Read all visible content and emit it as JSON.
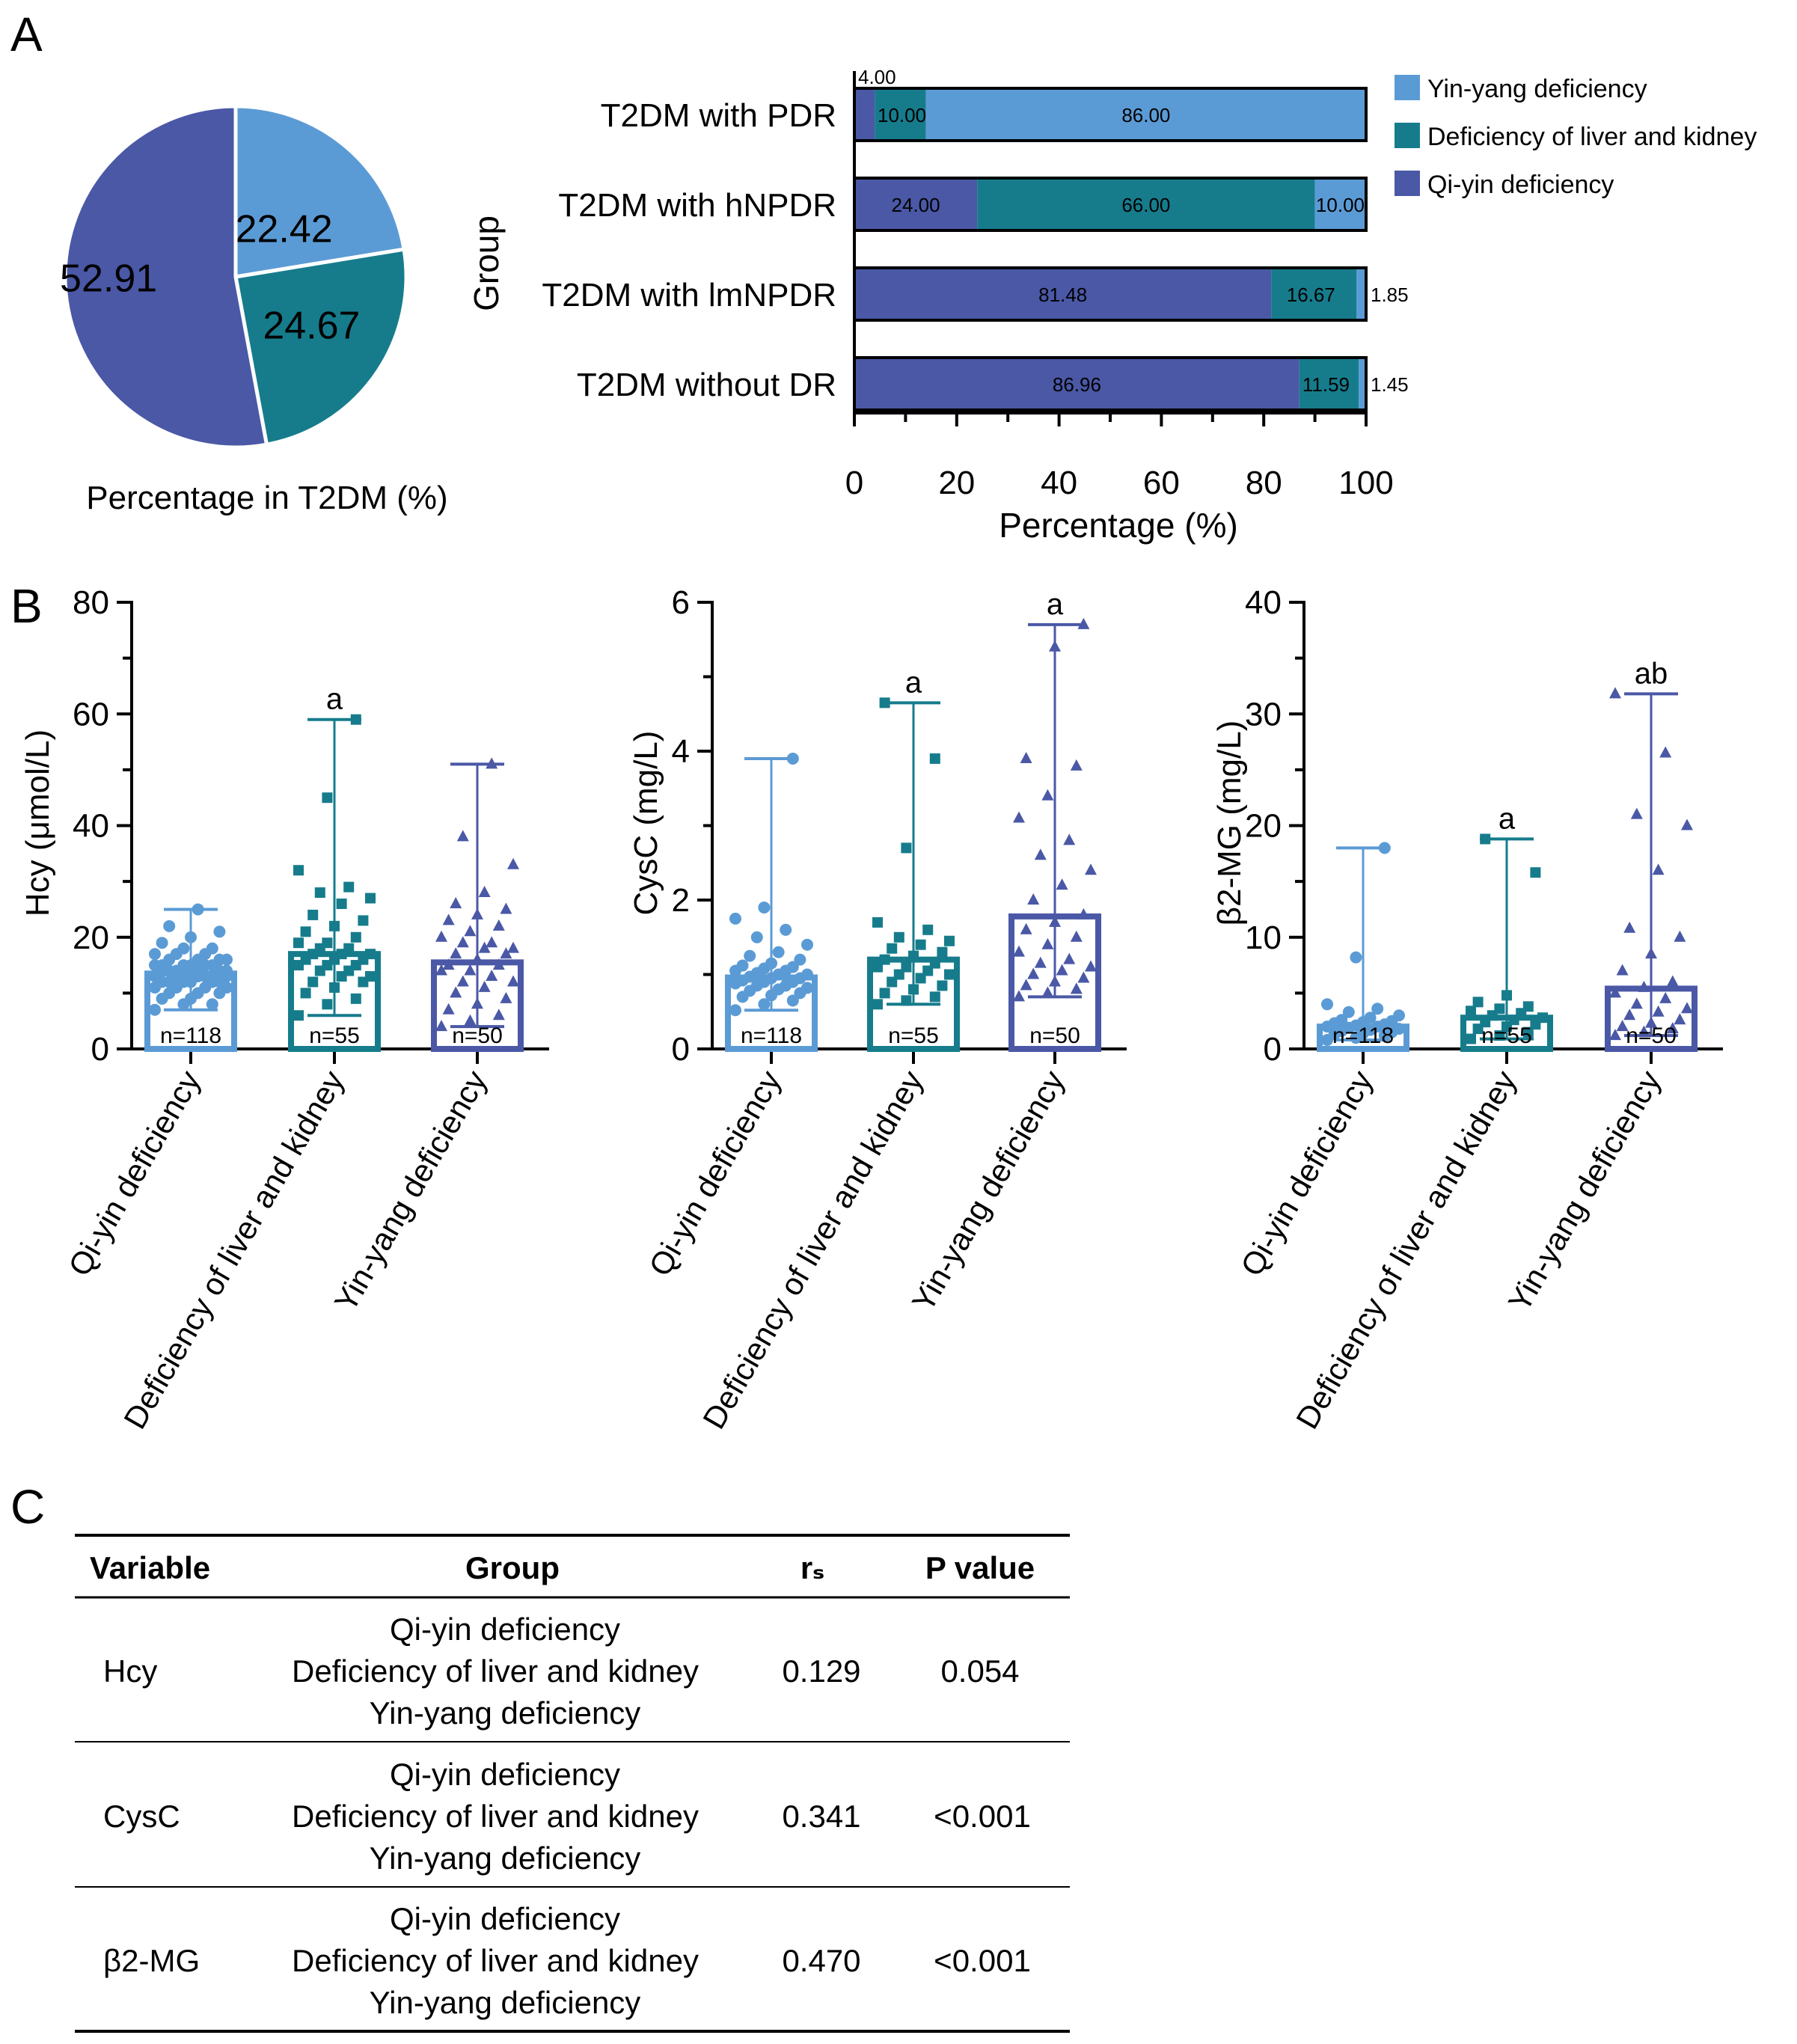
{
  "panels": {
    "a": "A",
    "b": "B",
    "c": "C"
  },
  "colors": {
    "qi_yin": "#4a58a6",
    "liver_kidney": "#167c8c",
    "yin_yang": "#5b9bd5",
    "box_qi_yin": "#5b9bd5",
    "box_liver_kidney": "#167c8c",
    "box_yin_yang": "#4a58a6"
  },
  "chart_data": [
    {
      "type": "pie",
      "id": "pie",
      "xlabel": "Percentage in T2DM (%)",
      "slices": [
        {
          "name": "Yin-yang deficiency",
          "value": 22.42,
          "label": "22.42",
          "color": "#5b9bd5"
        },
        {
          "name": "Deficiency of liver and kidney",
          "value": 24.67,
          "label": "24.67",
          "color": "#167c8c"
        },
        {
          "name": "Qi-yin deficiency",
          "value": 52.91,
          "label": "52.91",
          "color": "#4a58a6"
        }
      ]
    },
    {
      "type": "bar",
      "id": "stacked",
      "orientation": "horizontal",
      "stacked": true,
      "xlabel": "Percentage (%)",
      "ylabel": "Group",
      "xlim": [
        0,
        100
      ],
      "xticks": [
        "0",
        "20",
        "40",
        "60",
        "80",
        "100"
      ],
      "legend_position": "right",
      "categories": [
        "T2DM with PDR",
        "T2DM with hNPDR",
        "T2DM with lmNPDR",
        "T2DM without DR"
      ],
      "series": [
        {
          "name": "Qi-yin deficiency",
          "color": "#4a58a6",
          "values": [
            4.0,
            24.0,
            81.48,
            86.96
          ],
          "labels": [
            "4.00",
            "24.00",
            "81.48",
            "86.96"
          ]
        },
        {
          "name": "Deficiency of liver and kidney",
          "color": "#167c8c",
          "values": [
            10.0,
            66.0,
            16.67,
            11.59
          ],
          "labels": [
            "10.00",
            "66.00",
            "16.67",
            "11.59"
          ]
        },
        {
          "name": "Yin-yang deficiency",
          "color": "#5b9bd5",
          "values": [
            86.0,
            10.0,
            1.85,
            1.45
          ],
          "labels": [
            "86.00",
            "10.00",
            "1.85",
            "1.45"
          ]
        }
      ],
      "legend": [
        "Yin-yang deficiency",
        "Deficiency of liver and kidney",
        "Qi-yin deficiency"
      ]
    },
    {
      "type": "bar",
      "id": "hcy",
      "ylabel": "Hcy (μmol/L)",
      "ylim": [
        0,
        80
      ],
      "yticks": [
        "0",
        "20",
        "40",
        "60",
        "80"
      ],
      "categories": [
        "Qi-yin deficiency",
        "Deficiency of liver and kidney",
        "Yin-yang deficiency"
      ],
      "values": [
        13.5,
        17.0,
        15.5
      ],
      "mins": [
        7,
        6,
        4
      ],
      "maxs": [
        25,
        59,
        51
      ],
      "n": [
        "n=118",
        "n=55",
        "n=50"
      ],
      "sig": [
        "",
        "a",
        ""
      ],
      "points": [
        [
          7,
          8,
          8,
          9,
          9,
          10,
          10,
          10,
          11,
          11,
          11,
          11,
          12,
          12,
          12,
          12,
          12,
          12,
          13,
          13,
          13,
          13,
          13,
          13,
          13,
          14,
          14,
          14,
          14,
          14,
          14,
          14,
          15,
          15,
          15,
          15,
          15,
          15,
          16,
          16,
          16,
          16,
          17,
          17,
          17,
          18,
          18,
          19,
          20,
          21,
          22,
          25
        ],
        [
          6,
          8,
          9,
          10,
          11,
          12,
          12,
          13,
          13,
          14,
          14,
          15,
          15,
          15,
          16,
          16,
          16,
          17,
          17,
          17,
          18,
          18,
          19,
          19,
          20,
          21,
          22,
          23,
          24,
          26,
          27,
          28,
          29,
          32,
          45,
          59
        ],
        [
          4,
          5,
          6,
          7,
          8,
          9,
          10,
          11,
          12,
          12,
          13,
          14,
          14,
          15,
          15,
          16,
          17,
          17,
          18,
          18,
          19,
          19,
          20,
          21,
          22,
          23,
          24,
          25,
          26,
          28,
          33,
          38,
          51
        ]
      ]
    },
    {
      "type": "bar",
      "id": "cysc",
      "ylabel": "CysC (mg/L)",
      "ylim": [
        0,
        6
      ],
      "yticks": [
        "0",
        "2",
        "4",
        "6"
      ],
      "categories": [
        "Qi-yin deficiency",
        "Deficiency of liver and kidney",
        "Yin-yang deficiency"
      ],
      "values": [
        0.96,
        1.2,
        1.78
      ],
      "mins": [
        0.52,
        0.6,
        0.7
      ],
      "maxs": [
        3.9,
        4.65,
        5.7
      ],
      "n": [
        "n=118",
        "n=55",
        "n=50"
      ],
      "sig": [
        "",
        "a",
        "a"
      ],
      "points": [
        [
          0.52,
          0.6,
          0.65,
          0.7,
          0.72,
          0.75,
          0.78,
          0.8,
          0.82,
          0.85,
          0.85,
          0.88,
          0.9,
          0.9,
          0.92,
          0.95,
          0.95,
          0.97,
          1.0,
          1.0,
          1.02,
          1.05,
          1.05,
          1.08,
          1.1,
          1.12,
          1.15,
          1.2,
          1.25,
          1.3,
          1.4,
          1.5,
          1.6,
          1.75,
          1.9,
          3.9
        ],
        [
          0.6,
          0.65,
          0.7,
          0.75,
          0.8,
          0.85,
          0.9,
          0.95,
          1.0,
          1.0,
          1.05,
          1.1,
          1.1,
          1.15,
          1.2,
          1.25,
          1.3,
          1.35,
          1.4,
          1.45,
          1.5,
          1.6,
          1.7,
          2.7,
          3.9,
          4.65
        ],
        [
          0.7,
          0.75,
          0.8,
          0.85,
          0.9,
          0.95,
          1.0,
          1.05,
          1.1,
          1.15,
          1.2,
          1.3,
          1.4,
          1.5,
          1.6,
          1.7,
          1.8,
          2.0,
          2.2,
          2.4,
          2.6,
          2.8,
          3.1,
          3.4,
          3.8,
          3.9,
          5.4,
          5.7
        ]
      ]
    },
    {
      "type": "bar",
      "id": "b2mg",
      "ylabel": "β2-MG (mg/L)",
      "ylim": [
        0,
        40
      ],
      "yticks": [
        "0",
        "10",
        "20",
        "30",
        "40"
      ],
      "categories": [
        "Qi-yin deficiency",
        "Deficiency of liver and kidney",
        "Yin-yang deficiency"
      ],
      "values": [
        2.0,
        2.8,
        5.4
      ],
      "mins": [
        0.8,
        0.9,
        1.2
      ],
      "maxs": [
        18,
        18.8,
        31.8
      ],
      "n": [
        "n=118",
        "n=55",
        "n=50"
      ],
      "sig": [
        "",
        "a",
        "ab"
      ],
      "points": [
        [
          0.8,
          1.0,
          1.2,
          1.3,
          1.4,
          1.5,
          1.6,
          1.7,
          1.8,
          1.9,
          2.0,
          2.0,
          2.1,
          2.2,
          2.3,
          2.4,
          2.5,
          2.6,
          2.8,
          3.0,
          3.3,
          3.6,
          4.0,
          8.2,
          18
        ],
        [
          0.9,
          1.2,
          1.5,
          1.8,
          2.0,
          2.2,
          2.4,
          2.6,
          2.8,
          3.0,
          3.2,
          3.4,
          3.6,
          3.8,
          4.2,
          4.8,
          15.8,
          18.8
        ],
        [
          1.2,
          1.5,
          1.8,
          2.0,
          2.3,
          2.6,
          3.0,
          3.3,
          3.6,
          4.0,
          4.5,
          5.0,
          5.5,
          6.0,
          7.0,
          8.5,
          10.0,
          10.8,
          16.0,
          20.0,
          21.0,
          26.5,
          31.8
        ]
      ]
    }
  ],
  "table": {
    "headers": [
      "Variable",
      "Group",
      "rₛ",
      "P value"
    ],
    "rows": [
      {
        "variable": "Hcy",
        "groups": [
          "Qi-yin deficiency",
          "Deficiency of liver and kidney",
          "Yin-yang deficiency"
        ],
        "rs": "0.129",
        "p": "0.054"
      },
      {
        "variable": "CysC",
        "groups": [
          "Qi-yin deficiency",
          "Deficiency of liver and kidney",
          "Yin-yang deficiency"
        ],
        "rs": "0.341",
        "p": "<0.001"
      },
      {
        "variable": "β2-MG",
        "groups": [
          "Qi-yin deficiency",
          "Deficiency of liver and kidney",
          "Yin-yang deficiency"
        ],
        "rs": "0.470",
        "p": "<0.001"
      }
    ]
  }
}
